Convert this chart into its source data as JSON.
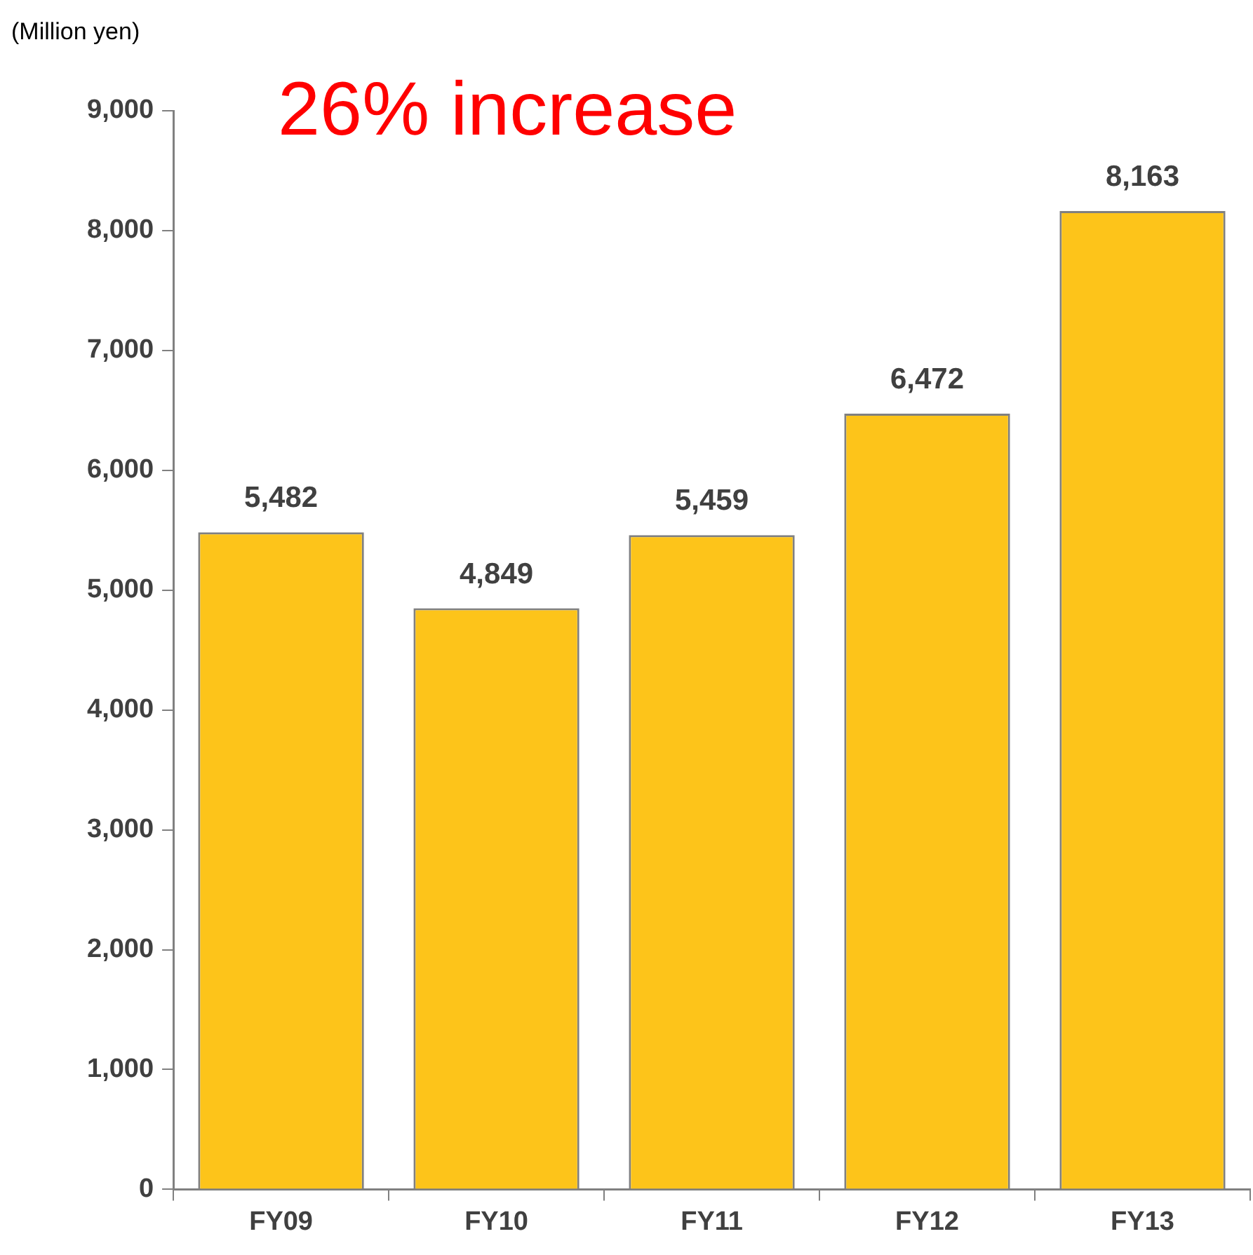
{
  "chart_data": {
    "type": "bar",
    "ylabel": "(Million yen)",
    "annotations": [
      "26% increase"
    ],
    "categories": [
      "FY09",
      "FY10",
      "FY11",
      "FY12",
      "FY13"
    ],
    "values": [
      5482,
      4849,
      5459,
      6472,
      8163
    ],
    "value_labels": [
      "5,482",
      "4,849",
      "5,459",
      "6,472",
      "8,163"
    ],
    "color": "#fdc41a",
    "ylim": [
      0,
      9000
    ],
    "yticks": [
      0,
      {
        "value": 1000,
        "label": "1,000"
      },
      {
        "value": 2000,
        "label": "2,000"
      },
      {
        "value": 3000,
        "label": "3,000"
      },
      {
        "value": 4000,
        "label": "4,000"
      },
      {
        "value": 5000,
        "label": "5,000"
      },
      {
        "value": 6000,
        "label": "6,000"
      },
      {
        "value": 7000,
        "label": "7,000"
      },
      {
        "value": 8000,
        "label": "8,000"
      },
      {
        "value": 9000,
        "label": "9,000"
      }
    ],
    "grid": false,
    "legend": false
  }
}
